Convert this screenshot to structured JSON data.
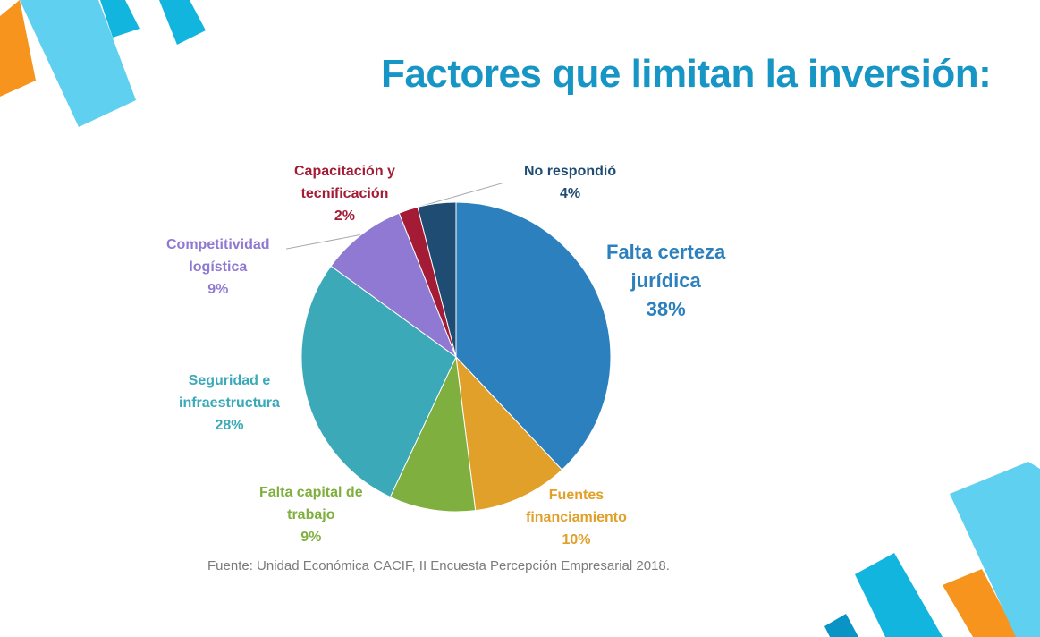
{
  "colors": {
    "title": "#1796c5",
    "accent_orange": "#f7941d",
    "accent_blue_light": "#5fd0ef",
    "accent_blue": "#12b5dd",
    "accent_blue_dark": "#0a94c6",
    "source_text": "#7b7b7b"
  },
  "title": "Factores que limitan la inversión:",
  "source": "Fuente: Unidad Económica CACIF, II Encuesta Percepción Empresarial 2018.",
  "chart_data": {
    "type": "pie",
    "start_angle_deg": 0,
    "direction": "clockwise",
    "slices": [
      {
        "key": "certeza",
        "label_lines": [
          "Falta certeza",
          "jurídica"
        ],
        "pct": "38%",
        "value": 38,
        "color": "#2c80bd"
      },
      {
        "key": "fuentes",
        "label_lines": [
          "Fuentes",
          "financiamiento"
        ],
        "pct": "10%",
        "value": 10,
        "color": "#e0a02a"
      },
      {
        "key": "capital",
        "label_lines": [
          "Falta capital de",
          "trabajo"
        ],
        "pct": "9%",
        "value": 9,
        "color": "#7fb03f"
      },
      {
        "key": "seguridad",
        "label_lines": [
          "Seguridad e",
          "infraestructura"
        ],
        "pct": "28%",
        "value": 28,
        "color": "#3ba9b8"
      },
      {
        "key": "competitividad",
        "label_lines": [
          "Competitividad",
          "logística"
        ],
        "pct": "9%",
        "value": 9,
        "color": "#8f79d2"
      },
      {
        "key": "capacitacion",
        "label_lines": [
          "Capacitación y",
          "tecnificación"
        ],
        "pct": "2%",
        "value": 2,
        "color": "#a31b34"
      },
      {
        "key": "norespondio",
        "label_lines": [
          "No respondió"
        ],
        "pct": "4%",
        "value": 4,
        "color": "#1f4c72"
      }
    ]
  }
}
